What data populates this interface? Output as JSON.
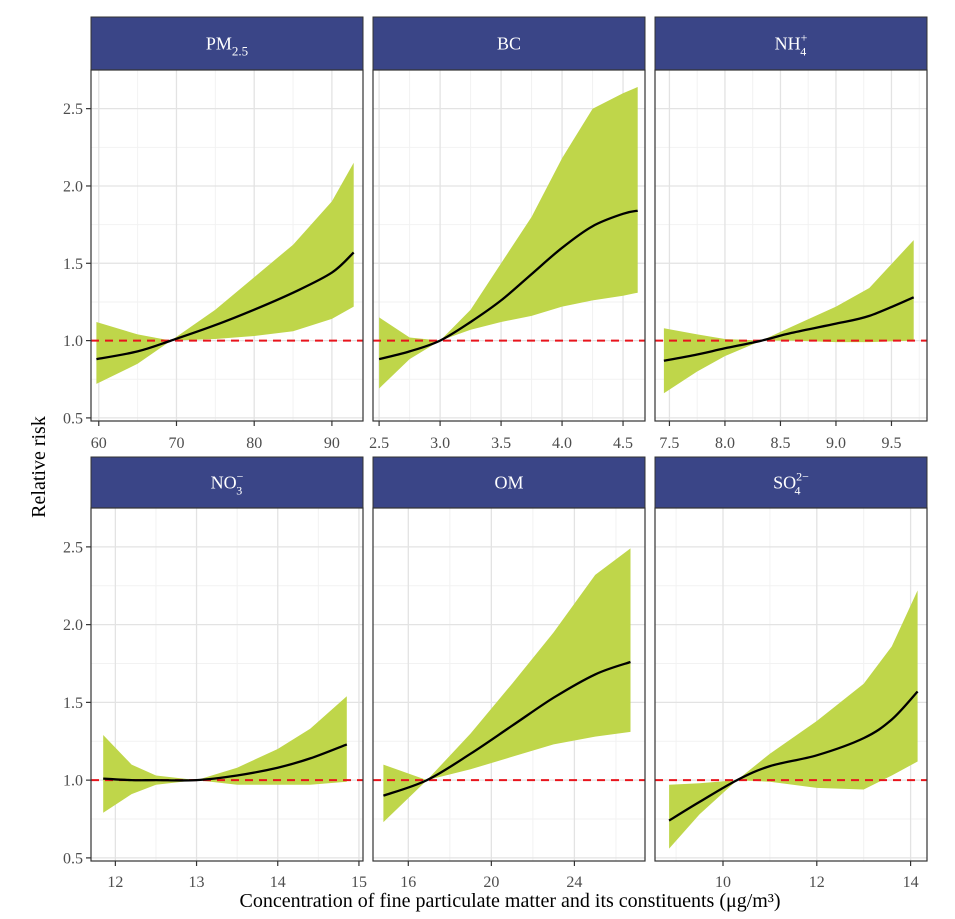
{
  "figure": {
    "ylabel": "Relative risk",
    "xlabel": "Concentration of fine particulate matter and its constituents (μg/m³)"
  },
  "colors": {
    "strip": "#3A4587",
    "strip_text": "#FFFFFF",
    "ribbon": "#BFD64A",
    "line": "#000000",
    "reference": "#E8141C",
    "grid_major": "#E3E3E3",
    "grid_minor": "#F2F2F2",
    "border": "#333333"
  },
  "chart_data": [
    {
      "type": "line",
      "panel": "PM2.5",
      "title": {
        "main": "PM",
        "sub": "2.5",
        "sup": ""
      },
      "xlim": [
        59,
        94
      ],
      "ylim": [
        0.48,
        2.75
      ],
      "xticks": [
        60,
        70,
        80,
        90
      ],
      "xtick_labels": [
        "60",
        "70",
        "80",
        "90"
      ],
      "yticks": [
        0.5,
        1.0,
        1.5,
        2.0,
        2.5
      ],
      "ytick_labels": [
        "0.5",
        "1.0",
        "1.5",
        "2.0",
        "2.5"
      ],
      "reference_y": 1.0,
      "x": [
        59.7,
        65,
        69.3,
        75,
        80,
        85,
        90,
        92.8
      ],
      "y": [
        0.88,
        0.93,
        1.0,
        1.1,
        1.2,
        1.31,
        1.44,
        1.57
      ],
      "lower": [
        0.72,
        0.85,
        1.0,
        1.01,
        1.03,
        1.06,
        1.14,
        1.22
      ],
      "upper": [
        1.12,
        1.04,
        1.0,
        1.2,
        1.41,
        1.62,
        1.9,
        2.15
      ]
    },
    {
      "type": "line",
      "panel": "BC",
      "title": {
        "main": "BC",
        "sub": "",
        "sup": ""
      },
      "xlim": [
        2.45,
        4.68
      ],
      "ylim": [
        0.48,
        2.75
      ],
      "xticks": [
        2.5,
        3.0,
        3.5,
        4.0,
        4.5
      ],
      "xtick_labels": [
        "2.5",
        "3.0",
        "3.5",
        "4.0",
        "4.5"
      ],
      "yticks": [
        0.5,
        1.0,
        1.5,
        2.0,
        2.5
      ],
      "ytick_labels": [
        "0.5",
        "1.0",
        "1.5",
        "2.0",
        "2.5"
      ],
      "reference_y": 1.0,
      "x": [
        2.5,
        2.75,
        3.0,
        3.25,
        3.5,
        3.75,
        4.0,
        4.25,
        4.5,
        4.62
      ],
      "y": [
        0.88,
        0.93,
        1.0,
        1.12,
        1.26,
        1.43,
        1.6,
        1.74,
        1.82,
        1.84
      ],
      "lower": [
        0.69,
        0.88,
        1.0,
        1.07,
        1.12,
        1.16,
        1.22,
        1.26,
        1.29,
        1.31
      ],
      "upper": [
        1.15,
        1.02,
        1.0,
        1.2,
        1.5,
        1.8,
        2.18,
        2.5,
        2.6,
        2.64
      ]
    },
    {
      "type": "line",
      "panel": "NH4+",
      "title": {
        "main": "NH",
        "sub": "4",
        "sup": "+"
      },
      "xlim": [
        7.37,
        9.82
      ],
      "ylim": [
        0.48,
        2.75
      ],
      "xticks": [
        7.5,
        8.0,
        8.5,
        9.0,
        9.5
      ],
      "xtick_labels": [
        "7.5",
        "8.0",
        "8.5",
        "9.0",
        "9.5"
      ],
      "yticks": [
        0.5,
        1.0,
        1.5,
        2.0,
        2.5
      ],
      "ytick_labels": [
        "0.5",
        "1.0",
        "1.5",
        "2.0",
        "2.5"
      ],
      "reference_y": 1.0,
      "x": [
        7.45,
        7.75,
        8.0,
        8.33,
        8.6,
        9.0,
        9.3,
        9.7
      ],
      "y": [
        0.87,
        0.91,
        0.95,
        1.0,
        1.05,
        1.11,
        1.16,
        1.28
      ],
      "lower": [
        0.66,
        0.8,
        0.9,
        1.0,
        1.0,
        0.99,
        0.99,
        1.0
      ],
      "upper": [
        1.08,
        1.04,
        1.01,
        1.0,
        1.09,
        1.22,
        1.34,
        1.65
      ]
    },
    {
      "type": "line",
      "panel": "NO3-",
      "title": {
        "main": "NO",
        "sub": "3",
        "sup": "−"
      },
      "xlim": [
        11.7,
        15.05
      ],
      "ylim": [
        0.48,
        2.75
      ],
      "xticks": [
        12,
        13,
        14,
        15
      ],
      "xtick_labels": [
        "12",
        "13",
        "14",
        "15"
      ],
      "yticks": [
        0.5,
        1.0,
        1.5,
        2.0,
        2.5
      ],
      "ytick_labels": [
        "0.5",
        "1.0",
        "1.5",
        "2.0",
        "2.5"
      ],
      "reference_y": 1.0,
      "x": [
        11.85,
        12.2,
        12.5,
        13.0,
        13.5,
        14.0,
        14.4,
        14.85
      ],
      "y": [
        1.01,
        1.0,
        1.0,
        1.0,
        1.03,
        1.08,
        1.14,
        1.23
      ],
      "lower": [
        0.79,
        0.91,
        0.97,
        1.0,
        0.97,
        0.97,
        0.97,
        0.99
      ],
      "upper": [
        1.29,
        1.1,
        1.03,
        1.0,
        1.08,
        1.2,
        1.33,
        1.54
      ]
    },
    {
      "type": "line",
      "panel": "OM",
      "title": {
        "main": "OM",
        "sub": "",
        "sup": ""
      },
      "xlim": [
        14.3,
        27.4
      ],
      "ylim": [
        0.48,
        2.75
      ],
      "xticks": [
        16,
        20,
        24
      ],
      "xtick_labels": [
        "16",
        "20",
        "24"
      ],
      "yticks": [
        0.5,
        1.0,
        1.5,
        2.0,
        2.5
      ],
      "ytick_labels": [
        "0.5",
        "1.0",
        "1.5",
        "2.0",
        "2.5"
      ],
      "reference_y": 1.0,
      "x": [
        14.8,
        16.9,
        19,
        21,
        23,
        25,
        26.7
      ],
      "y": [
        0.9,
        1.0,
        1.17,
        1.35,
        1.53,
        1.68,
        1.76
      ],
      "lower": [
        0.73,
        1.0,
        1.07,
        1.15,
        1.23,
        1.28,
        1.31
      ],
      "upper": [
        1.1,
        1.0,
        1.3,
        1.62,
        1.95,
        2.32,
        2.49
      ]
    },
    {
      "type": "line",
      "panel": "SO4 2-",
      "title": {
        "main": "SO",
        "sub": "4",
        "sup": "2−"
      },
      "xlim": [
        8.55,
        14.35
      ],
      "ylim": [
        0.48,
        2.75
      ],
      "xticks": [
        10,
        12,
        14
      ],
      "xtick_labels": [
        "10",
        "12",
        "14"
      ],
      "yticks": [
        0.5,
        1.0,
        1.5,
        2.0,
        2.5
      ],
      "ytick_labels": [
        "0.5",
        "1.0",
        "1.5",
        "2.0",
        "2.5"
      ],
      "reference_y": 1.0,
      "x": [
        8.85,
        9.5,
        10.3,
        11,
        12,
        13,
        13.6,
        14.15
      ],
      "y": [
        0.74,
        0.86,
        1.0,
        1.09,
        1.16,
        1.27,
        1.39,
        1.57
      ],
      "lower": [
        0.56,
        0.78,
        1.0,
        0.99,
        0.95,
        0.94,
        1.03,
        1.12
      ],
      "upper": [
        0.97,
        0.98,
        1.0,
        1.17,
        1.38,
        1.62,
        1.86,
        2.22
      ]
    }
  ]
}
